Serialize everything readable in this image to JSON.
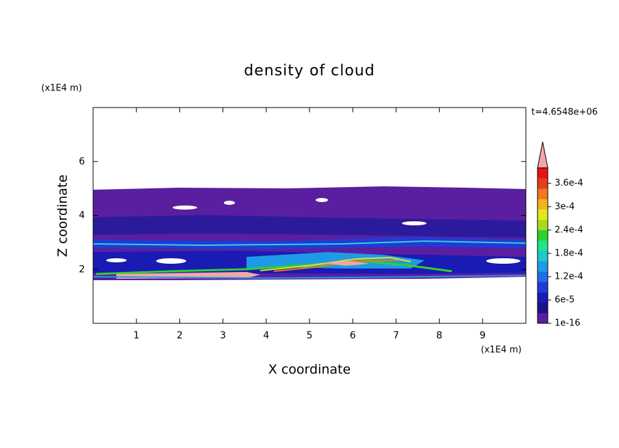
{
  "chart_data": {
    "type": "contour",
    "title": "density of cloud",
    "x_label": "X coordinate",
    "y_label": "Z coordinate",
    "x_unit": "(x1E4 m)",
    "y_unit": "(x1E4 m)",
    "annotation": "t=4.6548e+06",
    "xlim": [
      0,
      10
    ],
    "xticks": [
      1,
      2,
      3,
      4,
      5,
      6,
      7,
      8,
      9
    ],
    "ylim": [
      0,
      8
    ],
    "yticks": [
      2,
      4,
      6
    ],
    "colorbar": {
      "clim": [
        1e-16,
        0.0004
      ],
      "colors": [
        "#5a1fa0",
        "#1e0f8c",
        "#1a1ab4",
        "#1f3cd6",
        "#1e6ee6",
        "#1e9be6",
        "#1ec8c8",
        "#1ee68c",
        "#2ed22e",
        "#aadc1e",
        "#e6e61e",
        "#f0b41e",
        "#f0781e",
        "#e63c1e",
        "#e61414"
      ],
      "extend_color": "#f4a6a6",
      "ticks": [
        {
          "value": 1e-16,
          "label": "1e-16"
        },
        {
          "value": 6e-05,
          "label": "6e-5"
        },
        {
          "value": 0.00012,
          "label": "1.2e-4"
        },
        {
          "value": 0.00018,
          "label": "1.8e-4"
        },
        {
          "value": 0.00024,
          "label": "2.4e-4"
        },
        {
          "value": 0.0003,
          "label": "3e-4"
        },
        {
          "value": 0.00036,
          "label": "3.6e-4"
        }
      ]
    }
  }
}
